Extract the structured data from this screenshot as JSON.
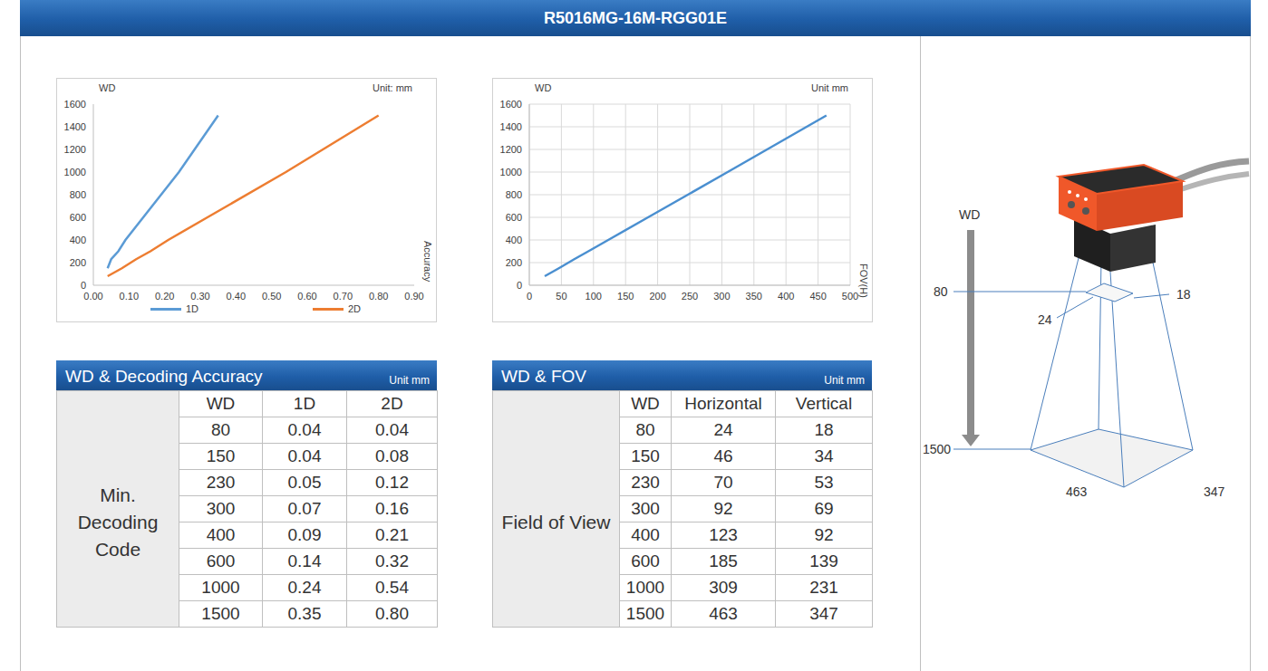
{
  "title": "R5016MG-16M-RGG01E",
  "chart_data": [
    {
      "type": "line",
      "ylabel": "WD",
      "xlabel": "Accuracy",
      "annotations": [
        "Unit: mm"
      ],
      "xlim": [
        0,
        0.9
      ],
      "xticks": [
        {
          "value": 0,
          "label": "0.00"
        },
        {
          "value": 0.1,
          "label": "0.10"
        },
        {
          "value": 0.2,
          "label": "0.20"
        },
        {
          "value": 0.3,
          "label": "0.30"
        },
        {
          "value": 0.4,
          "label": "0.40"
        },
        {
          "value": 0.5,
          "label": "0.50"
        },
        {
          "value": 0.6,
          "label": "0.60"
        },
        {
          "value": 0.7,
          "label": "0.70"
        },
        {
          "value": 0.8,
          "label": "0.80"
        },
        {
          "value": 0.9,
          "label": "0.90"
        }
      ],
      "ylim": [
        0,
        1600
      ],
      "yticks": [
        0,
        200,
        400,
        600,
        800,
        1000,
        1200,
        1400,
        1600
      ],
      "grid": false,
      "legend": "bottom",
      "series": [
        {
          "name": "1D",
          "color": "#5b9bd5",
          "x": [
            0.04,
            0.05,
            0.07,
            0.09,
            0.14,
            0.24,
            0.35
          ],
          "values": [
            150,
            230,
            300,
            400,
            600,
            1000,
            1500
          ]
        },
        {
          "name": "2D",
          "color": "#ed7d31",
          "x": [
            0.04,
            0.08,
            0.12,
            0.16,
            0.21,
            0.32,
            0.54,
            0.8
          ],
          "values": [
            80,
            150,
            230,
            300,
            400,
            600,
            1000,
            1500
          ]
        }
      ]
    },
    {
      "type": "line",
      "ylabel": "WD",
      "xlabel": "FOV(H)",
      "annotations": [
        "Unit mm"
      ],
      "xlim": [
        0,
        500
      ],
      "xticks": [
        0,
        50,
        100,
        150,
        200,
        250,
        300,
        350,
        400,
        450,
        500
      ],
      "ylim": [
        0,
        1600
      ],
      "yticks": [
        0,
        200,
        400,
        600,
        800,
        1000,
        1200,
        1400,
        1600
      ],
      "grid": true,
      "series": [
        {
          "name": "FOV(H)",
          "color": "#4a8fd0",
          "x": [
            24,
            46,
            70,
            92,
            123,
            185,
            309,
            463
          ],
          "values": [
            80,
            150,
            230,
            300,
            400,
            600,
            1000,
            1500
          ]
        }
      ]
    }
  ],
  "tables": [
    {
      "title": "WD & Decoding Accuracy",
      "unit": "Unit mm",
      "group": "Min. Decoding Code",
      "columns": [
        "WD",
        "1D",
        "2D"
      ],
      "rows": [
        [
          "80",
          "0.04",
          "0.04"
        ],
        [
          "150",
          "0.04",
          "0.08"
        ],
        [
          "230",
          "0.05",
          "0.12"
        ],
        [
          "300",
          "0.07",
          "0.16"
        ],
        [
          "400",
          "0.09",
          "0.21"
        ],
        [
          "600",
          "0.14",
          "0.32"
        ],
        [
          "1000",
          "0.24",
          "0.54"
        ],
        [
          "1500",
          "0.35",
          "0.80"
        ]
      ]
    },
    {
      "title": "WD & FOV",
      "unit": "Unit mm",
      "group": "Field of View",
      "columns": [
        "WD",
        "Horizontal",
        "Vertical"
      ],
      "rows": [
        [
          "80",
          "24",
          "18"
        ],
        [
          "150",
          "46",
          "34"
        ],
        [
          "230",
          "70",
          "53"
        ],
        [
          "300",
          "92",
          "69"
        ],
        [
          "400",
          "123",
          "92"
        ],
        [
          "600",
          "185",
          "139"
        ],
        [
          "1000",
          "309",
          "231"
        ],
        [
          "1500",
          "463",
          "347"
        ]
      ]
    }
  ],
  "diagram": {
    "wd_label": "WD",
    "near": {
      "wd": "80",
      "width": "24",
      "depth": "18"
    },
    "far": {
      "wd": "1500",
      "width": "463",
      "depth": "347"
    }
  }
}
